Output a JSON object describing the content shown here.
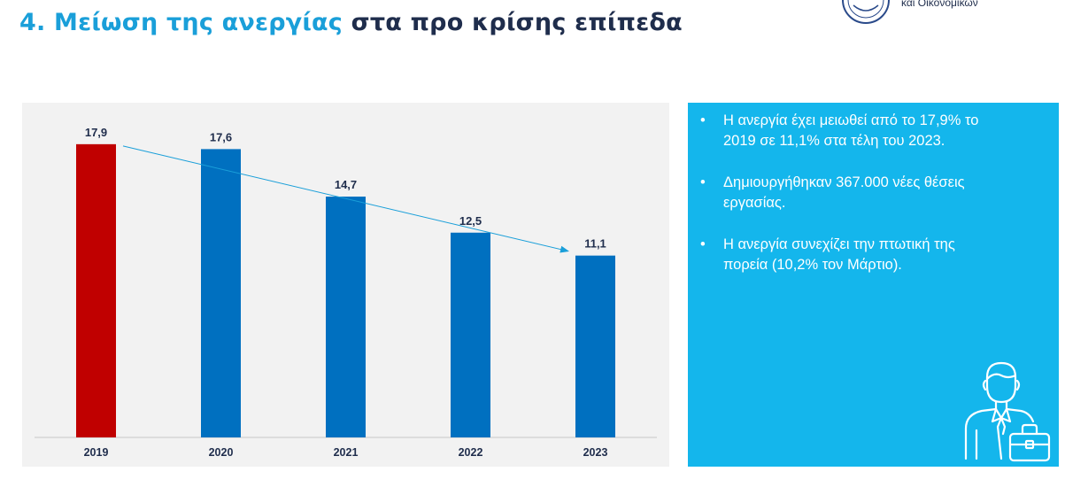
{
  "header": {
    "title_highlight": "4. Μείωση της ανεργίας",
    "title_rest": "στα προ κρίσης επίπεδα",
    "org_text": "και Οικονομικών"
  },
  "chart_data": {
    "type": "bar",
    "title": "",
    "xlabel": "",
    "ylabel": "",
    "categories": [
      "2019",
      "2020",
      "2021",
      "2022",
      "2023"
    ],
    "values": [
      17.9,
      17.6,
      14.7,
      12.5,
      11.1
    ],
    "labels": [
      "17,9",
      "17,6",
      "14,7",
      "12,5",
      "11,1"
    ],
    "colors": [
      "#c00000",
      "#0070c0",
      "#0070c0",
      "#0070c0",
      "#0070c0"
    ],
    "ylim": [
      0,
      20
    ],
    "trend_line": {
      "from": "2019",
      "to": "2023",
      "color": "#1a9fd9"
    }
  },
  "info": {
    "bullets": [
      "Η ανεργία έχει μειωθεί από το 17,9% το 2019 σε 11,1% στα τέλη του 2023.",
      "Δημιουργήθηκαν 367.000 νέες θέσεις εργασίας.",
      "Η ανεργία συνεχίζει την πτωτική της πορεία (10,2% τον Μάρτιο)."
    ],
    "bullet_glyph": "•",
    "icon": "businessman-briefcase-icon"
  }
}
